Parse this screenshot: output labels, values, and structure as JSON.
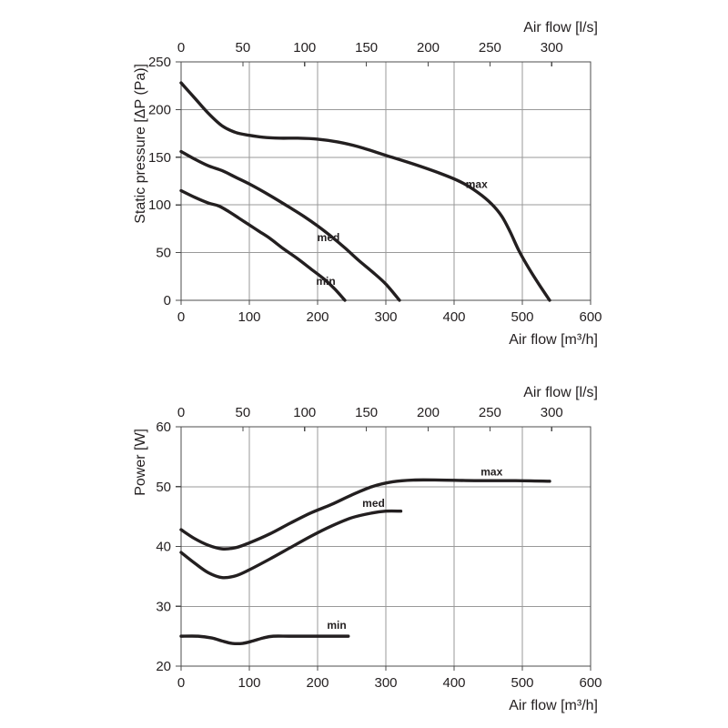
{
  "page": {
    "background": "#ffffff"
  },
  "colors": {
    "curve": "#231f20",
    "grid": "#999999",
    "axis": "#4c4c4c",
    "text": "#231f20"
  },
  "chart_data": [
    {
      "id": "pressure",
      "type": "line",
      "title": "",
      "xlabel": "Air flow [m³/h]",
      "ylabel": "Static pressure [ΔP (Pa)]",
      "top_axis": {
        "label": "Air flow [l/s]",
        "ticks": [
          0,
          50,
          100,
          150,
          200,
          250,
          300
        ],
        "ls_to_m3h_position": 1.81
      },
      "xlim": [
        0,
        600
      ],
      "ylim": [
        0,
        250
      ],
      "x_ticks": [
        0,
        100,
        200,
        300,
        400,
        500,
        600
      ],
      "y_ticks": [
        0,
        50,
        100,
        150,
        200,
        250
      ],
      "grid": true,
      "legend": "inline-labels",
      "series": [
        {
          "name": "max",
          "label": {
            "x": 433,
            "y": 118
          },
          "points": [
            [
              0,
              228
            ],
            [
              20,
              212
            ],
            [
              40,
              196
            ],
            [
              60,
              183
            ],
            [
              80,
              176
            ],
            [
              100,
              173
            ],
            [
              120,
              171
            ],
            [
              145,
              170
            ],
            [
              170,
              170
            ],
            [
              200,
              169
            ],
            [
              230,
              166
            ],
            [
              260,
              161
            ],
            [
              300,
              152
            ],
            [
              340,
              143
            ],
            [
              380,
              133
            ],
            [
              410,
              124
            ],
            [
              435,
              113
            ],
            [
              455,
              101
            ],
            [
              470,
              88
            ],
            [
              482,
              72
            ],
            [
              495,
              52
            ],
            [
              510,
              33
            ],
            [
              525,
              16
            ],
            [
              540,
              0
            ]
          ]
        },
        {
          "name": "med",
          "label": {
            "x": 216,
            "y": 62
          },
          "points": [
            [
              0,
              156
            ],
            [
              20,
              148
            ],
            [
              40,
              141
            ],
            [
              60,
              136
            ],
            [
              80,
              129
            ],
            [
              100,
              122
            ],
            [
              130,
              110
            ],
            [
              160,
              97
            ],
            [
              180,
              88
            ],
            [
              200,
              78
            ],
            [
              220,
              67
            ],
            [
              240,
              55
            ],
            [
              260,
              42
            ],
            [
              280,
              30
            ],
            [
              300,
              17
            ],
            [
              320,
              0
            ]
          ]
        },
        {
          "name": "min",
          "label": {
            "x": 212,
            "y": 16
          },
          "points": [
            [
              0,
              115
            ],
            [
              20,
              108
            ],
            [
              40,
              102
            ],
            [
              55,
              99
            ],
            [
              70,
              93
            ],
            [
              85,
              86
            ],
            [
              100,
              79
            ],
            [
              115,
              72
            ],
            [
              130,
              65
            ],
            [
              150,
              54
            ],
            [
              170,
              44
            ],
            [
              190,
              33
            ],
            [
              210,
              22
            ],
            [
              225,
              12
            ],
            [
              240,
              0
            ]
          ]
        }
      ]
    },
    {
      "id": "power",
      "type": "line",
      "title": "",
      "xlabel": "Air flow [m³/h]",
      "ylabel": "Power [W]",
      "top_axis": {
        "label": "Air flow [l/s]",
        "ticks": [
          0,
          50,
          100,
          150,
          200,
          250,
          300
        ],
        "ls_to_m3h_position": 1.81
      },
      "xlim": [
        0,
        600
      ],
      "ylim": [
        20,
        60
      ],
      "x_ticks": [
        0,
        100,
        200,
        300,
        400,
        500,
        600
      ],
      "y_ticks": [
        20,
        30,
        40,
        50,
        60
      ],
      "grid": true,
      "legend": "inline-labels",
      "series": [
        {
          "name": "max",
          "label": {
            "x": 455,
            "y": 51.9
          },
          "points": [
            [
              0,
              42.8
            ],
            [
              20,
              41.3
            ],
            [
              40,
              40.2
            ],
            [
              60,
              39.6
            ],
            [
              80,
              39.8
            ],
            [
              100,
              40.6
            ],
            [
              130,
              42.1
            ],
            [
              160,
              43.9
            ],
            [
              190,
              45.6
            ],
            [
              220,
              47
            ],
            [
              250,
              48.6
            ],
            [
              280,
              50
            ],
            [
              310,
              50.8
            ],
            [
              340,
              51.1
            ],
            [
              380,
              51.1
            ],
            [
              430,
              51
            ],
            [
              490,
              51
            ],
            [
              540,
              50.9
            ]
          ]
        },
        {
          "name": "med",
          "label": {
            "x": 282,
            "y": 46.6
          },
          "points": [
            [
              0,
              39
            ],
            [
              20,
              37.2
            ],
            [
              40,
              35.6
            ],
            [
              60,
              34.8
            ],
            [
              80,
              35.1
            ],
            [
              100,
              36.1
            ],
            [
              130,
              37.9
            ],
            [
              160,
              39.8
            ],
            [
              190,
              41.7
            ],
            [
              220,
              43.4
            ],
            [
              250,
              44.8
            ],
            [
              280,
              45.6
            ],
            [
              300,
              45.9
            ],
            [
              322,
              45.9
            ]
          ]
        },
        {
          "name": "min",
          "label": {
            "x": 228,
            "y": 26.2
          },
          "points": [
            [
              0,
              25
            ],
            [
              25,
              25
            ],
            [
              45,
              24.7
            ],
            [
              60,
              24.2
            ],
            [
              75,
              23.8
            ],
            [
              90,
              23.8
            ],
            [
              105,
              24.2
            ],
            [
              120,
              24.7
            ],
            [
              135,
              25
            ],
            [
              160,
              25
            ],
            [
              200,
              25
            ],
            [
              245,
              25
            ]
          ]
        }
      ]
    }
  ]
}
